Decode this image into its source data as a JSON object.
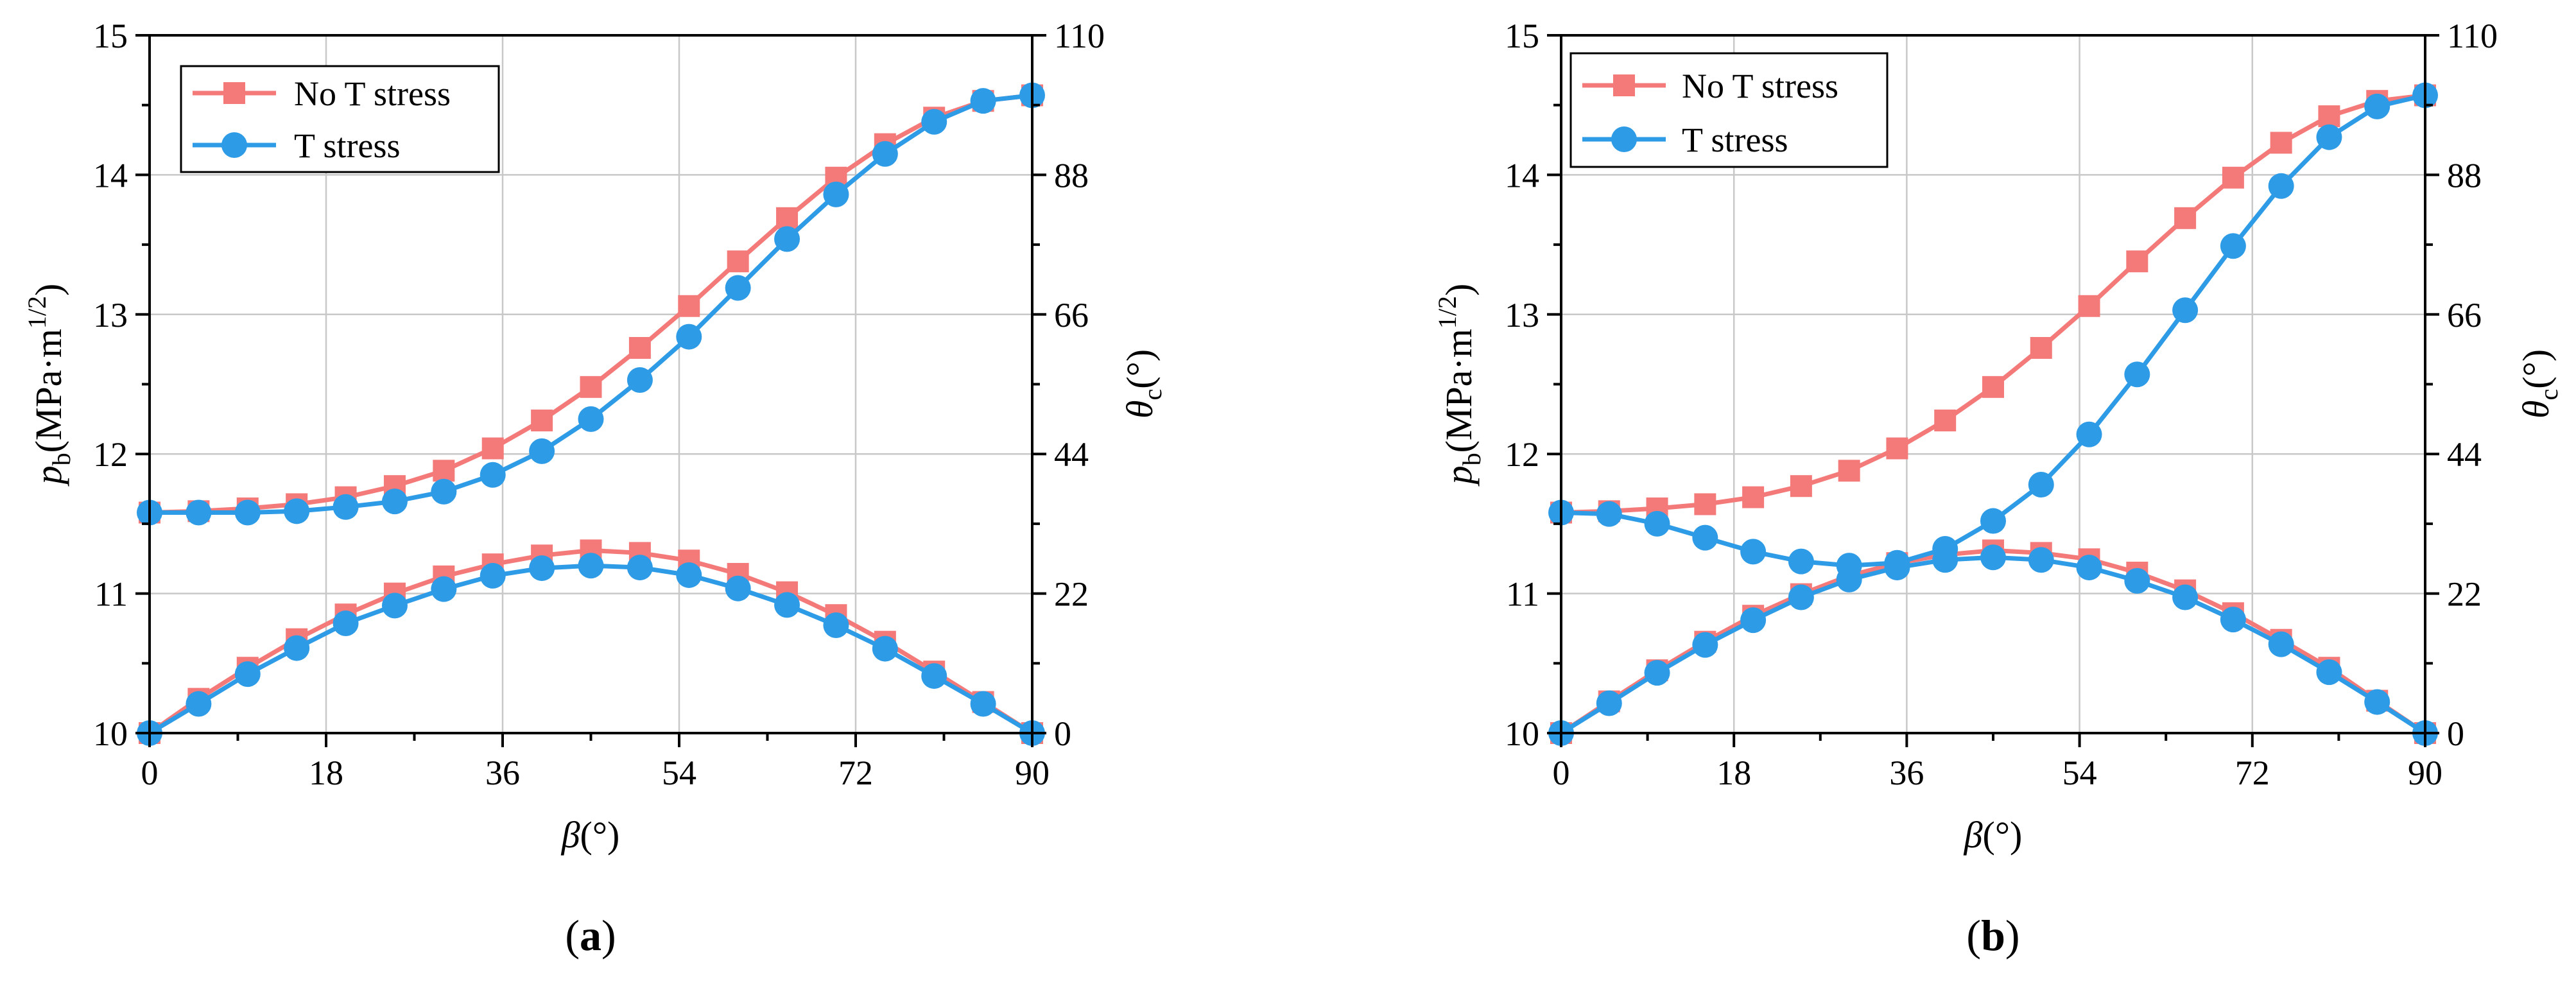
{
  "chart_data": [
    {
      "type": "line",
      "panel_label": {
        "open": "(",
        "letter": "a",
        "close": ")"
      },
      "xlabel": {
        "symbol": "β",
        "unit": "(°)"
      },
      "ylabel_left": {
        "symbol": "p",
        "sub": "b",
        "unit": "(MPa·m",
        "sup": "1/2",
        "close": ")"
      },
      "ylabel_right": {
        "symbol": "θ",
        "sub": "c",
        "unit": "(°)"
      },
      "xlim": [
        0,
        90
      ],
      "ylim_left": [
        10,
        15
      ],
      "ylim_right": [
        0,
        110
      ],
      "x_ticks": [
        0,
        18,
        36,
        54,
        72,
        90
      ],
      "y_ticks_left": [
        10,
        11,
        12,
        13,
        14,
        15
      ],
      "y_ticks_right": [
        0,
        22,
        44,
        66,
        88,
        110
      ],
      "grid": true,
      "legend_position": "top-left",
      "x": [
        0,
        5,
        10,
        15,
        20,
        25,
        30,
        35,
        40,
        45,
        50,
        55,
        60,
        65,
        70,
        75,
        80,
        85,
        90
      ],
      "series": [
        {
          "name": "No T stress",
          "axis": "left",
          "marker": "square",
          "color": "#F47A7A",
          "values": [
            11.58,
            11.59,
            11.61,
            11.64,
            11.69,
            11.77,
            11.88,
            12.04,
            12.24,
            12.48,
            12.76,
            13.06,
            13.38,
            13.69,
            13.98,
            14.22,
            14.41,
            14.53,
            14.57
          ]
        },
        {
          "name": "T stress",
          "axis": "left",
          "marker": "circle",
          "color": "#2E9BE6",
          "values": [
            11.58,
            11.58,
            11.58,
            11.59,
            11.62,
            11.66,
            11.73,
            11.85,
            12.02,
            12.25,
            12.53,
            12.84,
            13.19,
            13.54,
            13.86,
            14.15,
            14.38,
            14.53,
            14.57
          ]
        },
        {
          "name": "No T stress",
          "axis": "right",
          "marker": "square",
          "color": "#F47A7A",
          "in_legend": false,
          "values": [
            0,
            5.4,
            10.3,
            14.8,
            18.7,
            22.0,
            24.7,
            26.6,
            28.0,
            28.8,
            28.4,
            27.2,
            25.1,
            22.2,
            18.6,
            14.4,
            9.7,
            4.9,
            0
          ]
        },
        {
          "name": "T stress",
          "axis": "right",
          "marker": "circle",
          "color": "#2E9BE6",
          "in_legend": false,
          "values": [
            0,
            4.6,
            9.3,
            13.4,
            17.3,
            20.1,
            22.7,
            24.8,
            26.0,
            26.4,
            26.1,
            24.9,
            22.8,
            20.2,
            17.0,
            13.3,
            9.0,
            4.6,
            0
          ]
        }
      ]
    },
    {
      "type": "line",
      "panel_label": {
        "open": "(",
        "letter": "b",
        "close": ")"
      },
      "xlabel": {
        "symbol": "β",
        "unit": "(°)"
      },
      "ylabel_left": {
        "symbol": "p",
        "sub": "b",
        "unit": "(MPa·m",
        "sup": "1/2",
        "close": ")"
      },
      "ylabel_right": {
        "symbol": "θ",
        "sub": "c",
        "unit": "(°)"
      },
      "xlim": [
        0,
        90
      ],
      "ylim_left": [
        10,
        15
      ],
      "ylim_right": [
        0,
        110
      ],
      "x_ticks": [
        0,
        18,
        36,
        54,
        72,
        90
      ],
      "y_ticks_left": [
        10,
        11,
        12,
        13,
        14,
        15
      ],
      "y_ticks_right": [
        0,
        22,
        44,
        66,
        88,
        110
      ],
      "grid": true,
      "legend_position": "top-left",
      "x": [
        0,
        5,
        10,
        15,
        20,
        25,
        30,
        35,
        40,
        45,
        50,
        55,
        60,
        65,
        70,
        75,
        80,
        85,
        90
      ],
      "series": [
        {
          "name": "No T stress",
          "axis": "left",
          "marker": "square",
          "color": "#F47A7A",
          "values": [
            11.58,
            11.59,
            11.61,
            11.64,
            11.69,
            11.77,
            11.88,
            12.04,
            12.24,
            12.48,
            12.76,
            13.06,
            13.38,
            13.69,
            13.98,
            14.23,
            14.42,
            14.53,
            14.57
          ]
        },
        {
          "name": "T stress",
          "axis": "left",
          "marker": "circle",
          "color": "#2E9BE6",
          "values": [
            11.58,
            11.57,
            11.5,
            11.4,
            11.3,
            11.23,
            11.2,
            11.22,
            11.32,
            11.52,
            11.78,
            12.14,
            12.57,
            13.03,
            13.49,
            13.92,
            14.27,
            14.49,
            14.57
          ]
        },
        {
          "name": "No T stress",
          "axis": "right",
          "marker": "square",
          "color": "#F47A7A",
          "in_legend": false,
          "values": [
            0,
            5.0,
            9.9,
            14.4,
            18.5,
            21.9,
            24.8,
            26.8,
            28.1,
            28.8,
            28.4,
            27.4,
            25.3,
            22.5,
            18.9,
            14.7,
            10.3,
            5.1,
            0
          ]
        },
        {
          "name": "T stress",
          "axis": "right",
          "marker": "circle",
          "color": "#2E9BE6",
          "in_legend": false,
          "values": [
            0,
            4.7,
            9.5,
            13.9,
            17.8,
            21.4,
            24.2,
            26.1,
            27.3,
            27.7,
            27.3,
            26.1,
            24.0,
            21.4,
            17.9,
            14.0,
            9.6,
            4.9,
            0
          ]
        }
      ]
    }
  ]
}
